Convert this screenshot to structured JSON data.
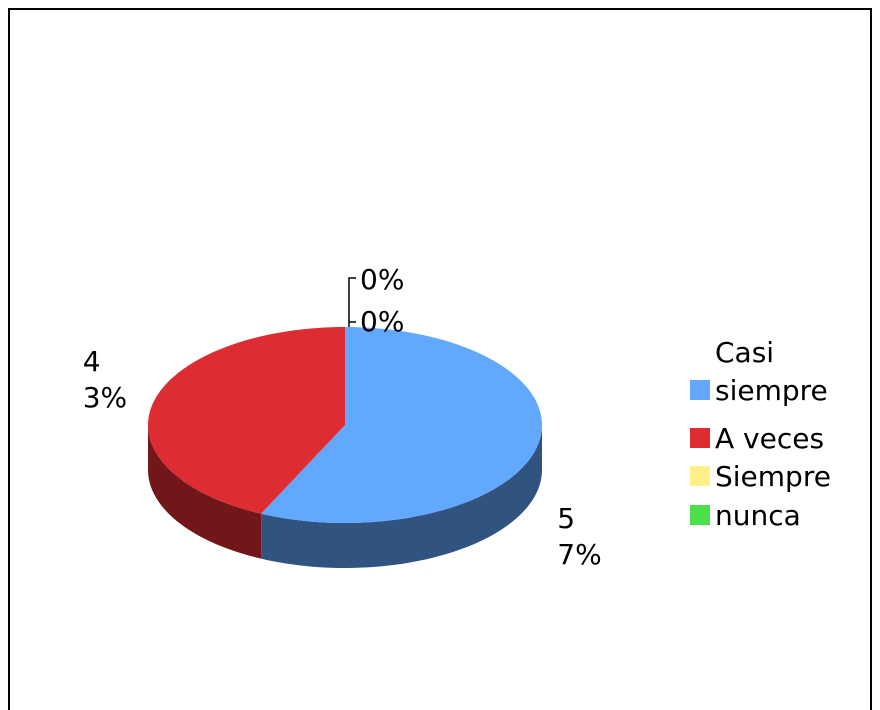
{
  "chart_data": {
    "type": "pie3d",
    "categories": [
      "Casi siempre",
      "A veces",
      "Siempre",
      "nunca"
    ],
    "values": [
      57,
      43,
      0,
      0
    ],
    "value_labels": [
      "57%",
      "43%",
      "0%",
      "0%"
    ],
    "colors": [
      "#63a8ff",
      "#dd2c32",
      "#fff08a",
      "#4de04d"
    ],
    "side_colors": [
      "#30547f",
      "#71171a",
      "#9a8f40",
      "#2a7a2a"
    ],
    "legend": "right"
  }
}
